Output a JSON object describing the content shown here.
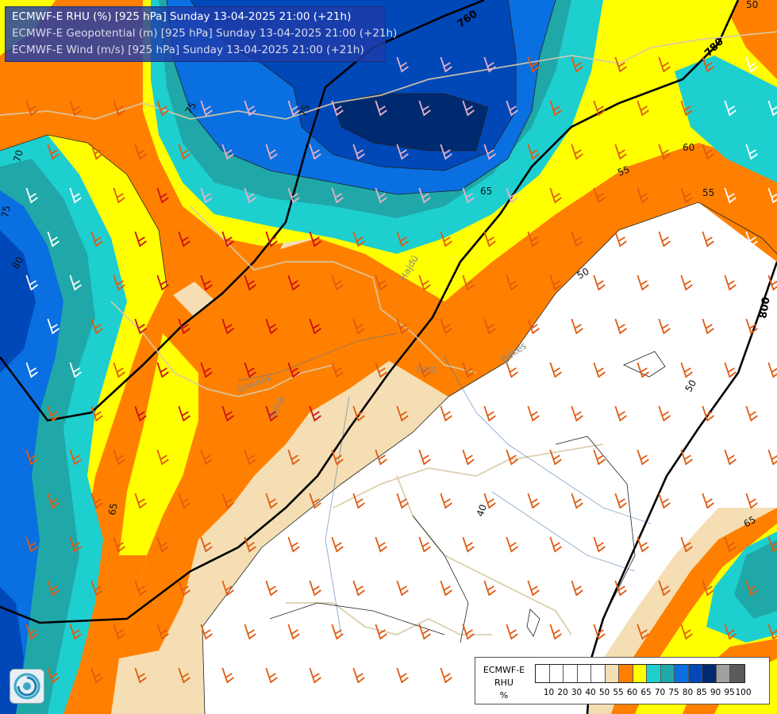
{
  "header": {
    "line1": "ECMWF-E RHU (%) [925 hPa] Sunday 13-04-2025 21:00 (+21h)",
    "line2": "ECMWF-E Geopotential (m) [925 hPa] Sunday 13-04-2025 21:00 (+21h)",
    "line3": "ECMWF-E Wind (m/s) [925 hPa] Sunday 13-04-2025 21:00 (+21h)"
  },
  "contour_labels": {
    "rhu": [
      "75",
      "70",
      "75",
      "80",
      "65",
      "65",
      "60",
      "55",
      "55",
      "50",
      "50",
      "40",
      "65",
      "75",
      "50"
    ],
    "geopotential": [
      "760",
      "780",
      "800"
    ]
  },
  "place_labels": [
    "Pest",
    "Békés",
    "Tolna",
    "Hajdú",
    "Szolnok"
  ],
  "legend": {
    "title_lines": [
      "ECMWF-E",
      "RHU",
      "%"
    ],
    "ticks": [
      "10",
      "20",
      "30",
      "40",
      "50",
      "55",
      "60",
      "65",
      "70",
      "75",
      "80",
      "85",
      "90",
      "95",
      "100"
    ],
    "colors": [
      "#ffffff",
      "#ffffff",
      "#ffffff",
      "#ffffff",
      "#ffffff",
      "#f5deb3",
      "#ff8000",
      "#ffff00",
      "#1ecfd0",
      "#20a8a8",
      "#0a6fe0",
      "#0048b8",
      "#002a70",
      "#a0a0a0",
      "#5a5a5a"
    ]
  },
  "palette": {
    "white": "#ffffff",
    "wheat": "#f5deb3",
    "orange": "#ff8000",
    "yellow": "#ffff00",
    "cyan": "#1ecfd0",
    "teal": "#20a8a8",
    "blue": "#0a6fe0",
    "darkblue": "#0048b8",
    "navy": "#002a70"
  },
  "logo": {
    "icon": "swirl-logo-icon"
  }
}
